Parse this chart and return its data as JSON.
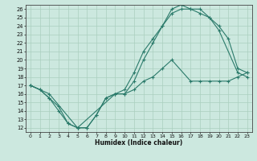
{
  "xlabel": "Humidex (Indice chaleur)",
  "bg_color": "#cce8df",
  "grid_color": "#aacfbf",
  "line_color": "#2a7a6a",
  "xlim": [
    -0.5,
    23.5
  ],
  "ylim": [
    11.5,
    26.5
  ],
  "xticks": [
    0,
    1,
    2,
    3,
    4,
    5,
    6,
    7,
    8,
    9,
    10,
    11,
    12,
    13,
    14,
    15,
    16,
    17,
    18,
    19,
    20,
    21,
    22,
    23
  ],
  "yticks": [
    12,
    13,
    14,
    15,
    16,
    17,
    18,
    19,
    20,
    21,
    22,
    23,
    24,
    25,
    26
  ],
  "curve1_x": [
    0,
    1,
    2,
    3,
    4,
    5,
    6,
    7,
    8,
    9,
    10,
    11,
    12,
    13,
    14,
    15,
    16,
    17,
    18,
    19,
    20,
    22,
    23
  ],
  "curve1_y": [
    17.0,
    16.5,
    15.5,
    14.0,
    12.5,
    12.0,
    12.0,
    13.5,
    15.5,
    16.0,
    16.5,
    18.5,
    21.0,
    22.5,
    24.0,
    25.5,
    26.0,
    26.0,
    26.0,
    25.0,
    23.5,
    18.5,
    18.0
  ],
  "curve2_x": [
    0,
    1,
    2,
    3,
    4,
    5,
    6,
    7,
    8,
    9,
    10,
    11,
    12,
    13,
    14,
    15,
    16,
    17,
    18,
    19,
    20,
    21,
    22,
    23
  ],
  "curve2_y": [
    17.0,
    16.5,
    15.5,
    14.5,
    12.5,
    12.0,
    12.0,
    13.5,
    15.5,
    16.0,
    16.0,
    17.5,
    20.0,
    22.0,
    24.0,
    26.0,
    26.5,
    26.0,
    25.5,
    25.0,
    24.0,
    22.5,
    19.0,
    18.5
  ],
  "curve3_x": [
    0,
    2,
    5,
    9,
    10,
    11,
    12,
    13,
    14,
    15,
    17,
    18,
    19,
    20,
    21,
    22,
    23
  ],
  "curve3_y": [
    17.0,
    16.0,
    12.0,
    16.0,
    16.0,
    16.5,
    17.5,
    18.0,
    19.0,
    20.0,
    17.5,
    17.5,
    17.5,
    17.5,
    17.5,
    18.0,
    18.5
  ]
}
